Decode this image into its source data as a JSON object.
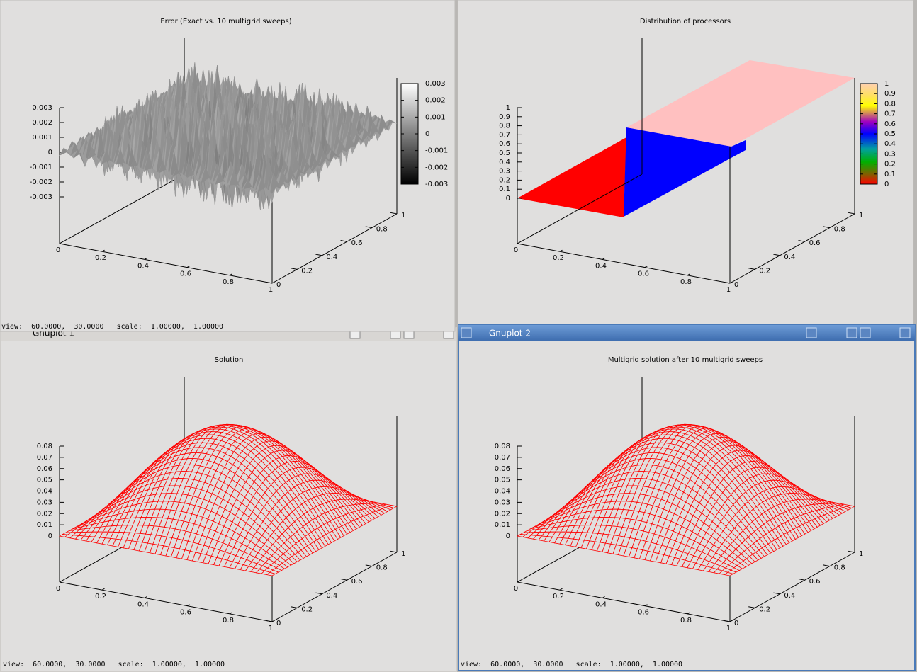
{
  "windows": [
    {
      "plot_title": "Error (Exact vs. 10 multigrid sweeps)",
      "z_ticks": [
        "0.003",
        "0.002",
        "0.001",
        "0",
        "-0.001",
        "-0.002",
        "-0.003"
      ],
      "colorbar_ticks": [
        "0.003",
        "0.002",
        "0.001",
        "0",
        "-0.001",
        "-0.002",
        "-0.003"
      ],
      "x_ticks": [
        "0",
        "0.2",
        "0.4",
        "0.6",
        "0.8",
        "1"
      ],
      "y_ticks": [
        "0",
        "0.2",
        "0.4",
        "0.6",
        "0.8",
        "1"
      ],
      "status": "view:  60.0000,  30.0000   scale:  1.00000,  1.00000"
    },
    {
      "plot_title": "Distribution of processors",
      "z_ticks": [
        "1",
        "0.9",
        "0.8",
        "0.7",
        "0.6",
        "0.5",
        "0.4",
        "0.3",
        "0.2",
        "0.1",
        "0"
      ],
      "colorbar_ticks": [
        "1",
        "0.9",
        "0.8",
        "0.7",
        "0.6",
        "0.5",
        "0.4",
        "0.3",
        "0.2",
        "0.1",
        "0"
      ],
      "x_ticks": [
        "0",
        "0.2",
        "0.4",
        "0.6",
        "0.8",
        "1"
      ],
      "y_ticks": [
        "0",
        "0.2",
        "0.4",
        "0.6",
        "0.8",
        "1"
      ]
    },
    {
      "window_title": "Gnuplot 1",
      "plot_title": "Solution",
      "z_ticks": [
        "0.08",
        "0.07",
        "0.06",
        "0.05",
        "0.04",
        "0.03",
        "0.02",
        "0.01",
        "0"
      ],
      "x_ticks": [
        "0",
        "0.2",
        "0.4",
        "0.6",
        "0.8",
        "1"
      ],
      "y_ticks": [
        "0",
        "0.2",
        "0.4",
        "0.6",
        "0.8",
        "1"
      ],
      "status": "view:  60.0000,  30.0000   scale:  1.00000,  1.00000"
    },
    {
      "window_title": "Gnuplot 2",
      "plot_title": "Multigrid solution after 10 multigrid sweeps",
      "z_ticks": [
        "0.08",
        "0.07",
        "0.06",
        "0.05",
        "0.04",
        "0.03",
        "0.02",
        "0.01",
        "0"
      ],
      "x_ticks": [
        "0",
        "0.2",
        "0.4",
        "0.6",
        "0.8",
        "1"
      ],
      "y_ticks": [
        "0",
        "0.2",
        "0.4",
        "0.6",
        "0.8",
        "1"
      ],
      "status": "view:  60.0000,  30.0000   scale:  1.00000,  1.00000"
    }
  ]
}
